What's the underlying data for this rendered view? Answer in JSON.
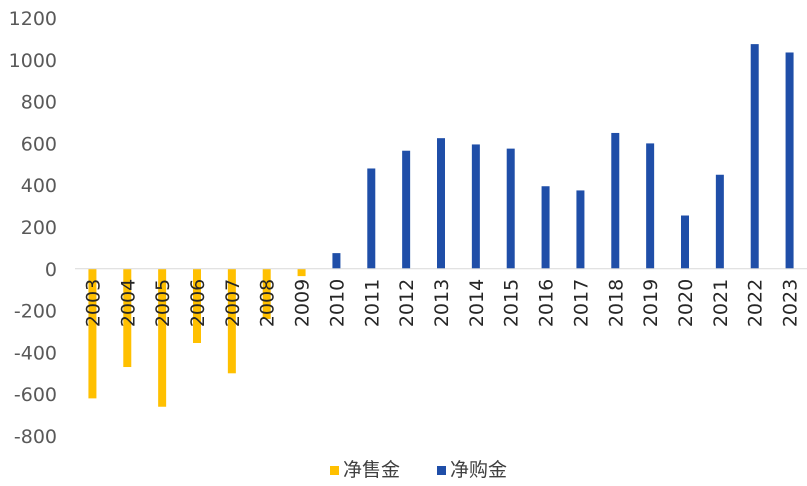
{
  "chart_data": {
    "type": "bar",
    "categories": [
      "2003",
      "2004",
      "2005",
      "2006",
      "2007",
      "2008",
      "2009",
      "2010",
      "2011",
      "2012",
      "2013",
      "2014",
      "2015",
      "2016",
      "2017",
      "2018",
      "2019",
      "2020",
      "2021",
      "2022",
      "2023"
    ],
    "series": [
      {
        "name": "净售金",
        "color": "#FFC000",
        "values": [
          -620,
          -470,
          -660,
          -355,
          -500,
          -240,
          -35,
          null,
          null,
          null,
          null,
          null,
          null,
          null,
          null,
          null,
          null,
          null,
          null,
          null,
          null
        ]
      },
      {
        "name": "净购金",
        "color": "#1F4EA8",
        "values": [
          null,
          null,
          null,
          null,
          null,
          null,
          null,
          75,
          480,
          565,
          625,
          595,
          575,
          395,
          375,
          650,
          600,
          255,
          450,
          1075,
          1035
        ]
      }
    ],
    "yticks": [
      "1200",
      "1000",
      "800",
      "600",
      "400",
      "200",
      "0",
      "-200",
      "-400",
      "-600",
      "-800"
    ],
    "ylim": [
      -800,
      1200
    ],
    "legend_position": "bottom",
    "grid": false,
    "title": "",
    "xlabel": "",
    "ylabel": ""
  }
}
